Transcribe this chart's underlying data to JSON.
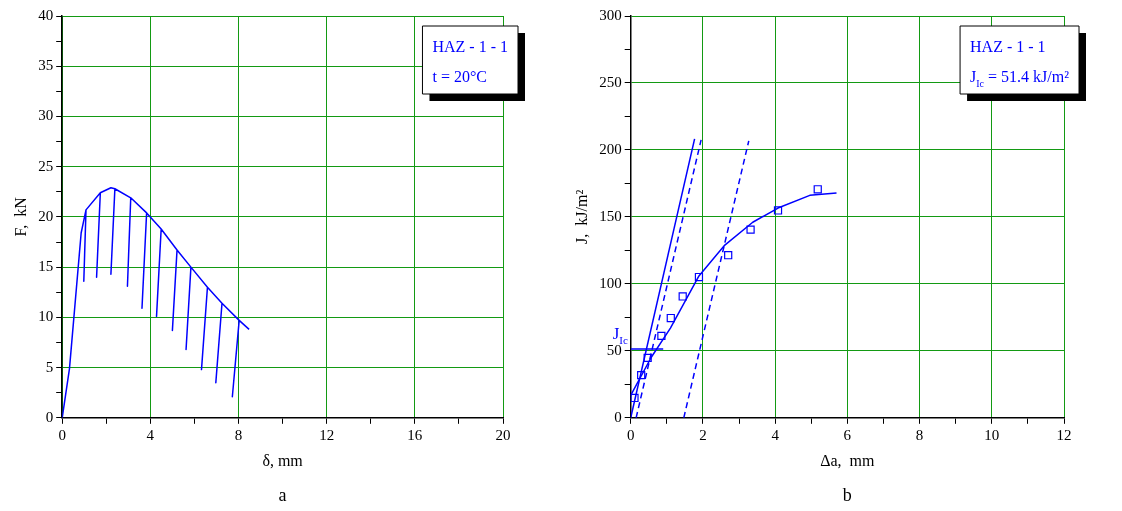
{
  "chart_data": [
    {
      "type": "line",
      "xlabel": "δ, mm",
      "ylabel": "F,  kN",
      "annotations": [
        "HAZ - 1 - 1",
        "t = 20°C",
        "a"
      ],
      "xlim": [
        0,
        20
      ],
      "ylim": [
        0,
        40
      ],
      "xticks": [
        0,
        {
          "value": 2,
          "label": null
        },
        4,
        {
          "value": 6,
          "label": null
        },
        8,
        {
          "value": 10,
          "label": null
        },
        12,
        {
          "value": 14,
          "label": null
        },
        16,
        {
          "value": 18,
          "label": null
        },
        20
      ],
      "yticks": [
        0,
        {
          "value": 2.5,
          "label": null
        },
        5,
        {
          "value": 7.5,
          "label": null
        },
        10,
        {
          "value": 12.5,
          "label": null
        },
        15,
        {
          "value": 17.5,
          "label": null
        },
        20,
        {
          "value": 22.5,
          "label": null
        },
        25,
        {
          "value": 27.5,
          "label": null
        },
        30,
        {
          "value": 32.5,
          "label": null
        },
        35,
        {
          "value": 37.5,
          "label": null
        },
        40
      ],
      "grid": true,
      "marker": "none",
      "line_style": "solid",
      "series": [
        {
          "color": "#0000ff",
          "x": [
            0,
            0.33,
            0.86,
            1.08,
            0.98,
            1.08,
            1.73,
            1.56,
            1.73,
            2.21,
            2.39,
            2.21,
            2.39,
            3.11,
            2.96,
            3.11,
            3.83,
            3.62,
            3.83,
            4.49,
            4.28,
            4.49,
            5.21,
            5.0,
            5.21,
            5.84,
            5.62,
            5.84,
            6.59,
            6.32,
            6.59,
            7.25,
            6.97,
            7.25,
            8.03,
            7.72,
            8.03,
            8.48
          ],
          "values": [
            0,
            4.9,
            18.4,
            20.7,
            13.6,
            20.7,
            22.4,
            14.0,
            22.4,
            22.9,
            22.8,
            14.3,
            22.8,
            21.9,
            13.1,
            21.9,
            20.4,
            10.9,
            20.4,
            18.8,
            10.1,
            18.8,
            16.7,
            8.7,
            16.7,
            15.0,
            6.8,
            15.0,
            13.0,
            4.8,
            13.0,
            11.4,
            3.5,
            11.4,
            9.7,
            2.1,
            9.7,
            8.8
          ]
        }
      ]
    },
    {
      "type": "line",
      "xlabel": "Δa,  mm",
      "ylabel": "J,  kJ/m²",
      "annotations": [
        "HAZ - 1 - 1",
        "J$_{Ic}$ = 51.4 kJ/m²",
        "b"
      ],
      "xlim": [
        0,
        12
      ],
      "ylim": [
        0,
        300
      ],
      "xticks": [
        0,
        {
          "value": 1,
          "label": null
        },
        2,
        {
          "value": 3,
          "label": null
        },
        4,
        {
          "value": 5,
          "label": null
        },
        6,
        {
          "value": 7,
          "label": null
        },
        8,
        {
          "value": 9,
          "label": null
        },
        10,
        {
          "value": 11,
          "label": null
        },
        12
      ],
      "yticks": [
        0,
        {
          "value": 25,
          "label": null
        },
        50,
        {
          "value": 75,
          "label": null
        },
        100,
        {
          "value": 125,
          "label": null
        },
        150,
        {
          "value": 175,
          "label": null
        },
        200,
        {
          "value": 225,
          "label": null
        },
        250,
        {
          "value": 275,
          "label": null
        },
        300
      ],
      "grid": true,
      "marker": "none",
      "line_style": "solid",
      "series": [
        {
          "type": "scatter",
          "marker": "square",
          "color": "#0000ff",
          "x": [
            0.105,
            0.29,
            0.47,
            0.85,
            1.11,
            1.44,
            1.89,
            2.7,
            3.32,
            4.08,
            5.18
          ],
          "values": [
            14.8,
            31.9,
            44.7,
            61.2,
            74.5,
            90.6,
            105.1,
            121.4,
            140.5,
            154.8,
            170.6
          ]
        },
        {
          "color": "#0000ff",
          "x": [
            0,
            0.57,
            1.1,
            1.89,
            2.59,
            3.38,
            4.08,
            4.96,
            5.7
          ],
          "values": [
            16.8,
            45.2,
            67.0,
            105.9,
            128.5,
            146.0,
            156.6,
            166.1,
            167.9
          ]
        },
        {
          "color": "#0000ff",
          "x": [
            0,
            1.77
          ],
          "values": [
            0,
            208.3
          ]
        },
        {
          "color": "#0000ff",
          "line_style": "dashed",
          "x": [
            0.15,
            1.95
          ],
          "values": [
            0,
            207.5
          ]
        },
        {
          "color": "#0000ff",
          "line_style": "dashed",
          "x": [
            1.47,
            3.27
          ],
          "values": [
            0,
            206.8
          ]
        },
        {
          "name": "J$_{Ic}$",
          "color": "#0000ff",
          "x": [
            0,
            0.9
          ],
          "values": [
            51.4,
            51.4
          ]
        }
      ]
    }
  ]
}
